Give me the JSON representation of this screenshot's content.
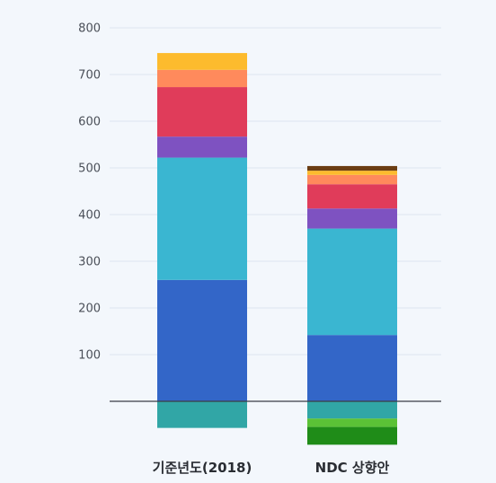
{
  "chart_data": {
    "type": "bar",
    "stacked": true,
    "categories": [
      "기준년도(2018)",
      "NDC 상향안"
    ],
    "y_ticks": [
      100,
      200,
      300,
      400,
      500,
      600,
      700,
      800
    ],
    "ylim": [
      -95,
      800
    ],
    "grid": true,
    "legend": "none",
    "positive_series": [
      {
        "color": "#3366c8",
        "values": [
          260,
          142
        ]
      },
      {
        "color": "#3ab6d1",
        "values": [
          262,
          228
        ]
      },
      {
        "color": "#7e52c1",
        "values": [
          45,
          43
        ]
      },
      {
        "color": "#e03c5a",
        "values": [
          106,
          52
        ]
      },
      {
        "color": "#ff8a5c",
        "values": [
          37,
          20
        ]
      },
      {
        "color": "#fdbb2d",
        "values": [
          36,
          9
        ]
      },
      {
        "color": "#6b3d13",
        "values": [
          0,
          10
        ]
      }
    ],
    "negative_series": [
      {
        "color": "#31a6a6",
        "values": [
          -57,
          -37
        ]
      },
      {
        "color": "#5bc236",
        "values": [
          0,
          -18
        ]
      },
      {
        "color": "#1f8c18",
        "values": [
          0,
          -38
        ]
      }
    ]
  }
}
